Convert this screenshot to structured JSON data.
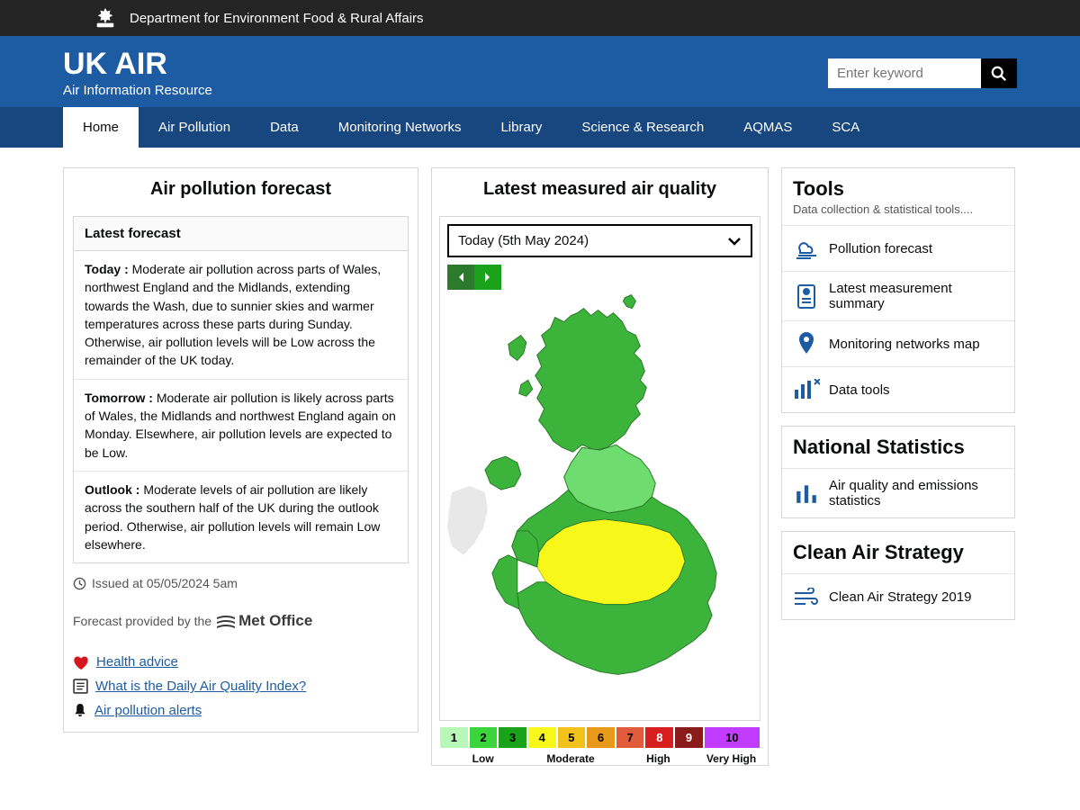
{
  "gov_header": {
    "dept": "Department for Environment Food & Rural Affairs"
  },
  "banner": {
    "title": "UK AIR",
    "subtitle": "Air Information Resource",
    "search_placeholder": "Enter keyword"
  },
  "nav": [
    "Home",
    "Air Pollution",
    "Data",
    "Monitoring Networks",
    "Library",
    "Science & Research",
    "AQMAS",
    "SCA"
  ],
  "nav_active": 0,
  "forecast": {
    "panel_title": "Air pollution forecast",
    "box_title": "Latest forecast",
    "items": [
      {
        "label": "Today :",
        "text": " Moderate air pollution across parts of Wales, northwest England and the Midlands, extending towards the Wash, due to sunnier skies and warmer temperatures across these parts during Sunday. Otherwise, air pollution levels will be Low across the remainder of the UK today."
      },
      {
        "label": "Tomorrow :",
        "text": " Moderate air pollution is likely across parts of Wales, the Midlands and northwest England again on Monday. Elsewhere, air pollution levels are expected to be Low."
      },
      {
        "label": "Outlook :",
        "text": " Moderate levels of air pollution are likely across the southern half of the UK during the outlook period. Otherwise, air pollution levels will remain Low elsewhere."
      }
    ],
    "issued": "Issued at 05/05/2024 5am",
    "provider_prefix": "Forecast provided by the",
    "provider_name": "Met Office",
    "links": [
      "Health advice",
      "What is the Daily Air Quality Index?",
      "Air pollution alerts"
    ]
  },
  "measured": {
    "panel_title": "Latest measured air quality",
    "date_selected": "Today (5th May 2024)",
    "map": {
      "colors": {
        "low_green": "#3cb43c",
        "mid_green": "#6edc6e",
        "moderate_yellow": "#f7f71a",
        "outline": "#2a7a2a"
      }
    },
    "daqi": {
      "cells": [
        {
          "n": "1",
          "bg": "#b7f7b7"
        },
        {
          "n": "2",
          "bg": "#3cd43c"
        },
        {
          "n": "3",
          "bg": "#1aa31a"
        },
        {
          "n": "4",
          "bg": "#f7f71a"
        },
        {
          "n": "5",
          "bg": "#f2c21a"
        },
        {
          "n": "6",
          "bg": "#e79a1a"
        },
        {
          "n": "7",
          "bg": "#e25c3c"
        },
        {
          "n": "8",
          "bg": "#d81f1f"
        },
        {
          "n": "9",
          "bg": "#8b1a1a"
        },
        {
          "n": "10",
          "bg": "#c23cff"
        }
      ],
      "labels": [
        "Low",
        "Moderate",
        "High",
        "Very High"
      ]
    }
  },
  "sidebar": {
    "tools": {
      "title": "Tools",
      "sub": "Data collection & statistical tools....",
      "items": [
        "Pollution forecast",
        "Latest measurement summary",
        "Monitoring networks map",
        "Data tools"
      ]
    },
    "natstat": {
      "title": "National Statistics",
      "items": [
        "Air quality and emissions statistics"
      ]
    },
    "cleanair": {
      "title": "Clean Air Strategy",
      "items": [
        "Clean Air Strategy 2019"
      ]
    }
  }
}
